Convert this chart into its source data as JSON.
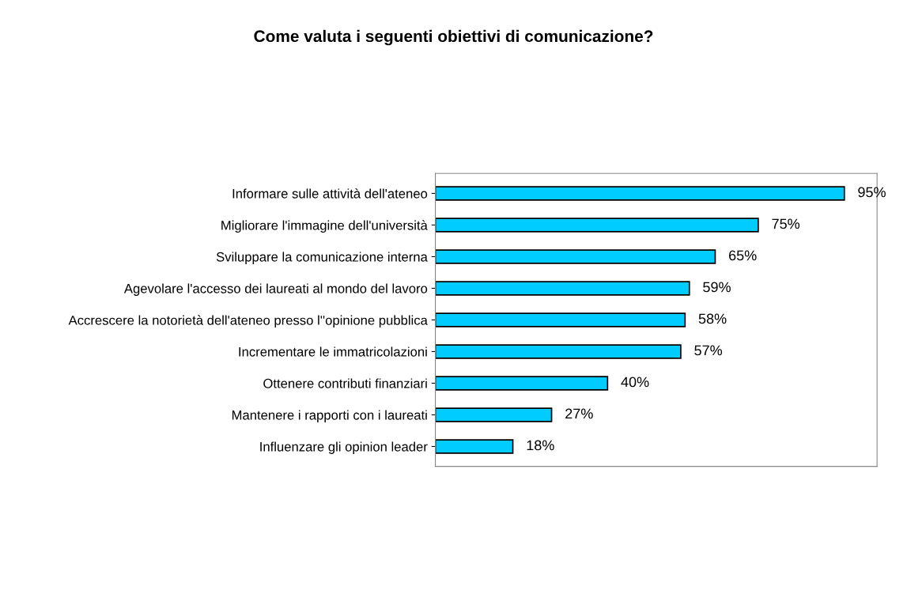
{
  "chart_data": {
    "type": "bar",
    "orientation": "horizontal",
    "title": "Come valuta i seguenti obiettivi di comunicazione?",
    "categories": [
      "Informare sulle attività dell'ateneo",
      "Migliorare l'immagine dell'università",
      "Sviluppare la comunicazione interna",
      "Agevolare l'accesso dei laureati al mondo del lavoro",
      "Accrescere la notorietà dell'ateneo presso l''opinione pubblica",
      "Incrementare le immatricolazioni",
      "Ottenere contributi finanziari",
      "Mantenere i rapporti con i laureati",
      "Influenzare gli opinion leader"
    ],
    "values": [
      95,
      75,
      65,
      59,
      58,
      57,
      40,
      27,
      18
    ],
    "value_labels": [
      "95%",
      "75%",
      "65%",
      "59%",
      "58%",
      "57%",
      "40%",
      "27%",
      "18%"
    ],
    "color": "#00ccff",
    "tick_labels": "y",
    "grid": false,
    "legend": false
  }
}
